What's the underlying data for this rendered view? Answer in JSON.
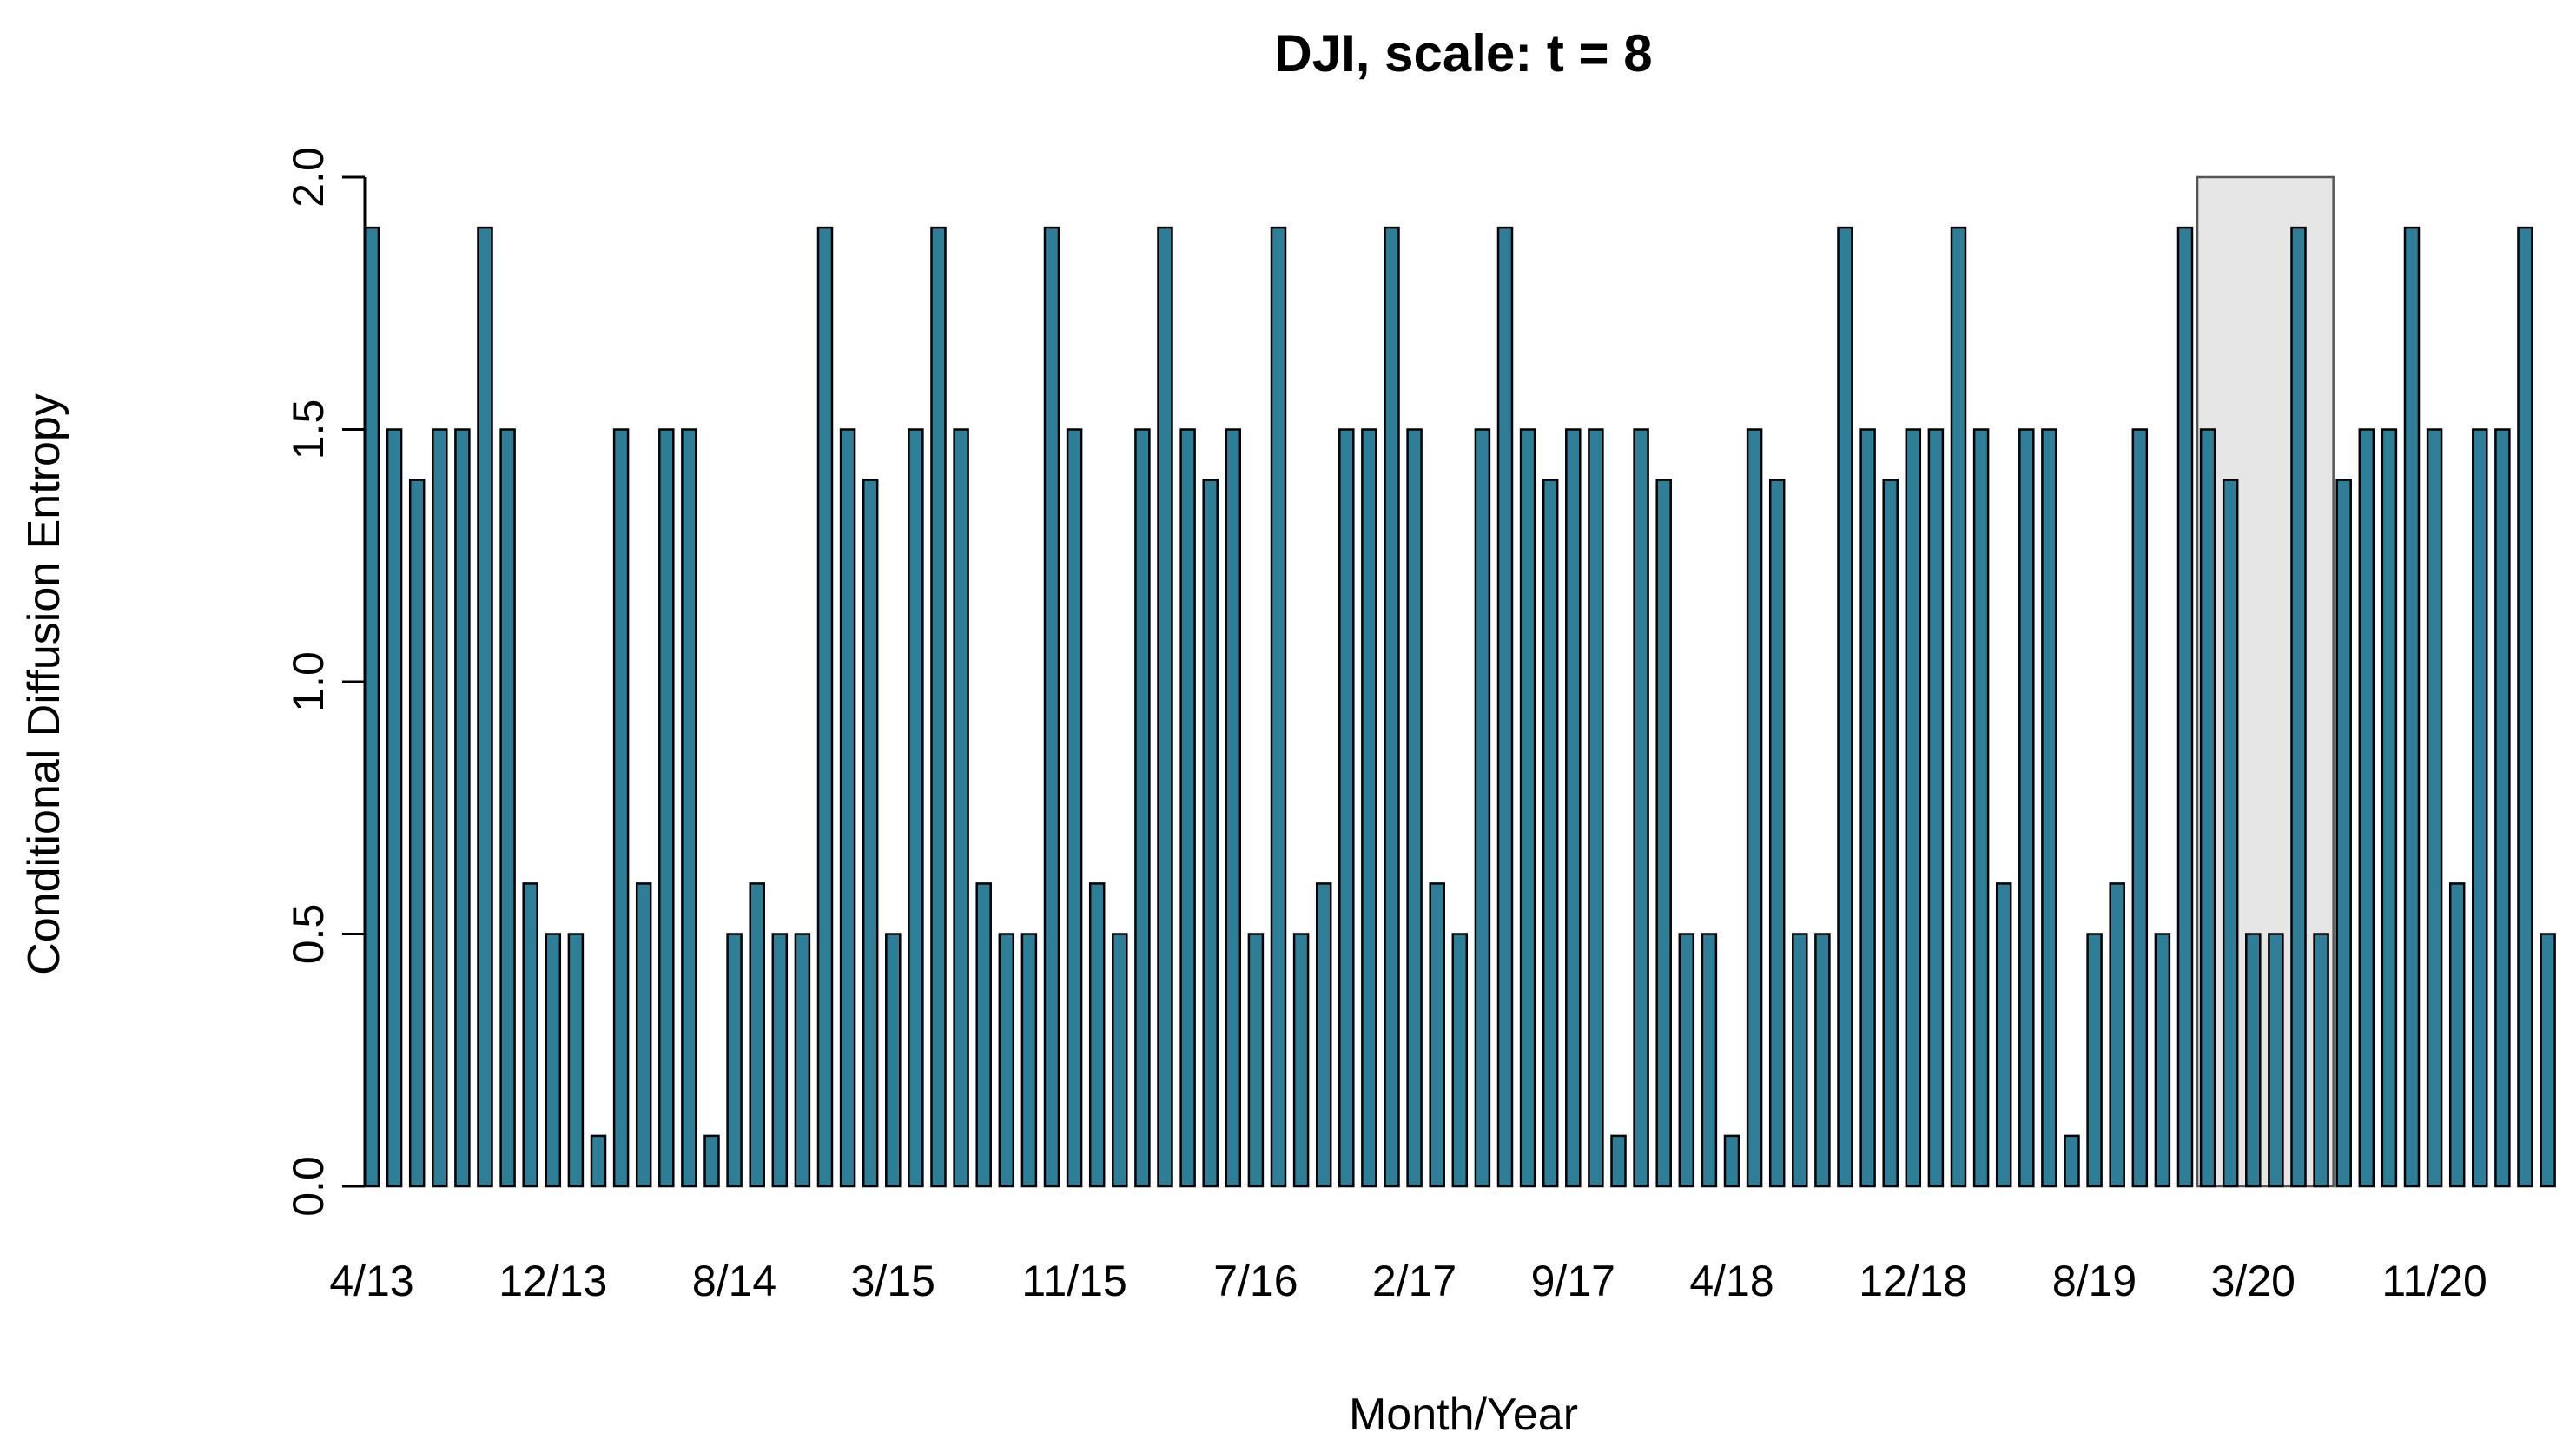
{
  "chart_data": {
    "type": "bar",
    "title": "DJI, scale: t = 8",
    "xlabel": "Month/Year",
    "ylabel": "Conditional Diffusion Entropy",
    "ylim": [
      0,
      2
    ],
    "yticks": [
      "0.0",
      "0.5",
      "1.0",
      "1.5",
      "2.0"
    ],
    "bar_color": "#2e7e98",
    "shade_color": "#e6e6e6",
    "x_tick_labels": [
      {
        "label": "4/13",
        "index": 0
      },
      {
        "label": "12/13",
        "index": 8
      },
      {
        "label": "8/14",
        "index": 16
      },
      {
        "label": "3/15",
        "index": 23
      },
      {
        "label": "11/15",
        "index": 31
      },
      {
        "label": "7/16",
        "index": 39
      },
      {
        "label": "2/17",
        "index": 46
      },
      {
        "label": "9/17",
        "index": 53
      },
      {
        "label": "4/18",
        "index": 60
      },
      {
        "label": "12/18",
        "index": 68
      },
      {
        "label": "8/19",
        "index": 76
      },
      {
        "label": "3/20",
        "index": 83
      },
      {
        "label": "11/20",
        "index": 91
      }
    ],
    "shaded_period": {
      "start_index": 81,
      "end_index": 87
    },
    "values": [
      1.9,
      1.5,
      1.4,
      1.5,
      1.5,
      1.9,
      1.5,
      0.6,
      0.5,
      0.5,
      0.1,
      1.5,
      0.6,
      1.5,
      1.5,
      0.1,
      0.5,
      0.6,
      0.5,
      0.5,
      1.9,
      1.5,
      1.4,
      0.5,
      1.5,
      1.9,
      1.5,
      0.6,
      0.5,
      0.5,
      1.9,
      1.5,
      0.6,
      0.5,
      1.5,
      1.9,
      1.5,
      1.4,
      1.5,
      0.5,
      1.9,
      0.5,
      0.6,
      1.5,
      1.5,
      1.9,
      1.5,
      0.6,
      0.5,
      1.5,
      1.9,
      1.5,
      1.4,
      1.5,
      1.5,
      0.1,
      1.5,
      1.4,
      0.5,
      0.5,
      0.1,
      1.5,
      1.4,
      0.5,
      0.5,
      1.9,
      1.5,
      1.4,
      1.5,
      1.5,
      1.9,
      1.5,
      0.6,
      1.5,
      1.5,
      0.1,
      0.5,
      0.6,
      1.5,
      0.5,
      1.9,
      1.5,
      1.4,
      0.5,
      0.5,
      1.9,
      0.5,
      1.4,
      1.5,
      1.5,
      1.9,
      1.5,
      0.6,
      1.5,
      1.5,
      1.9,
      0.5
    ]
  }
}
